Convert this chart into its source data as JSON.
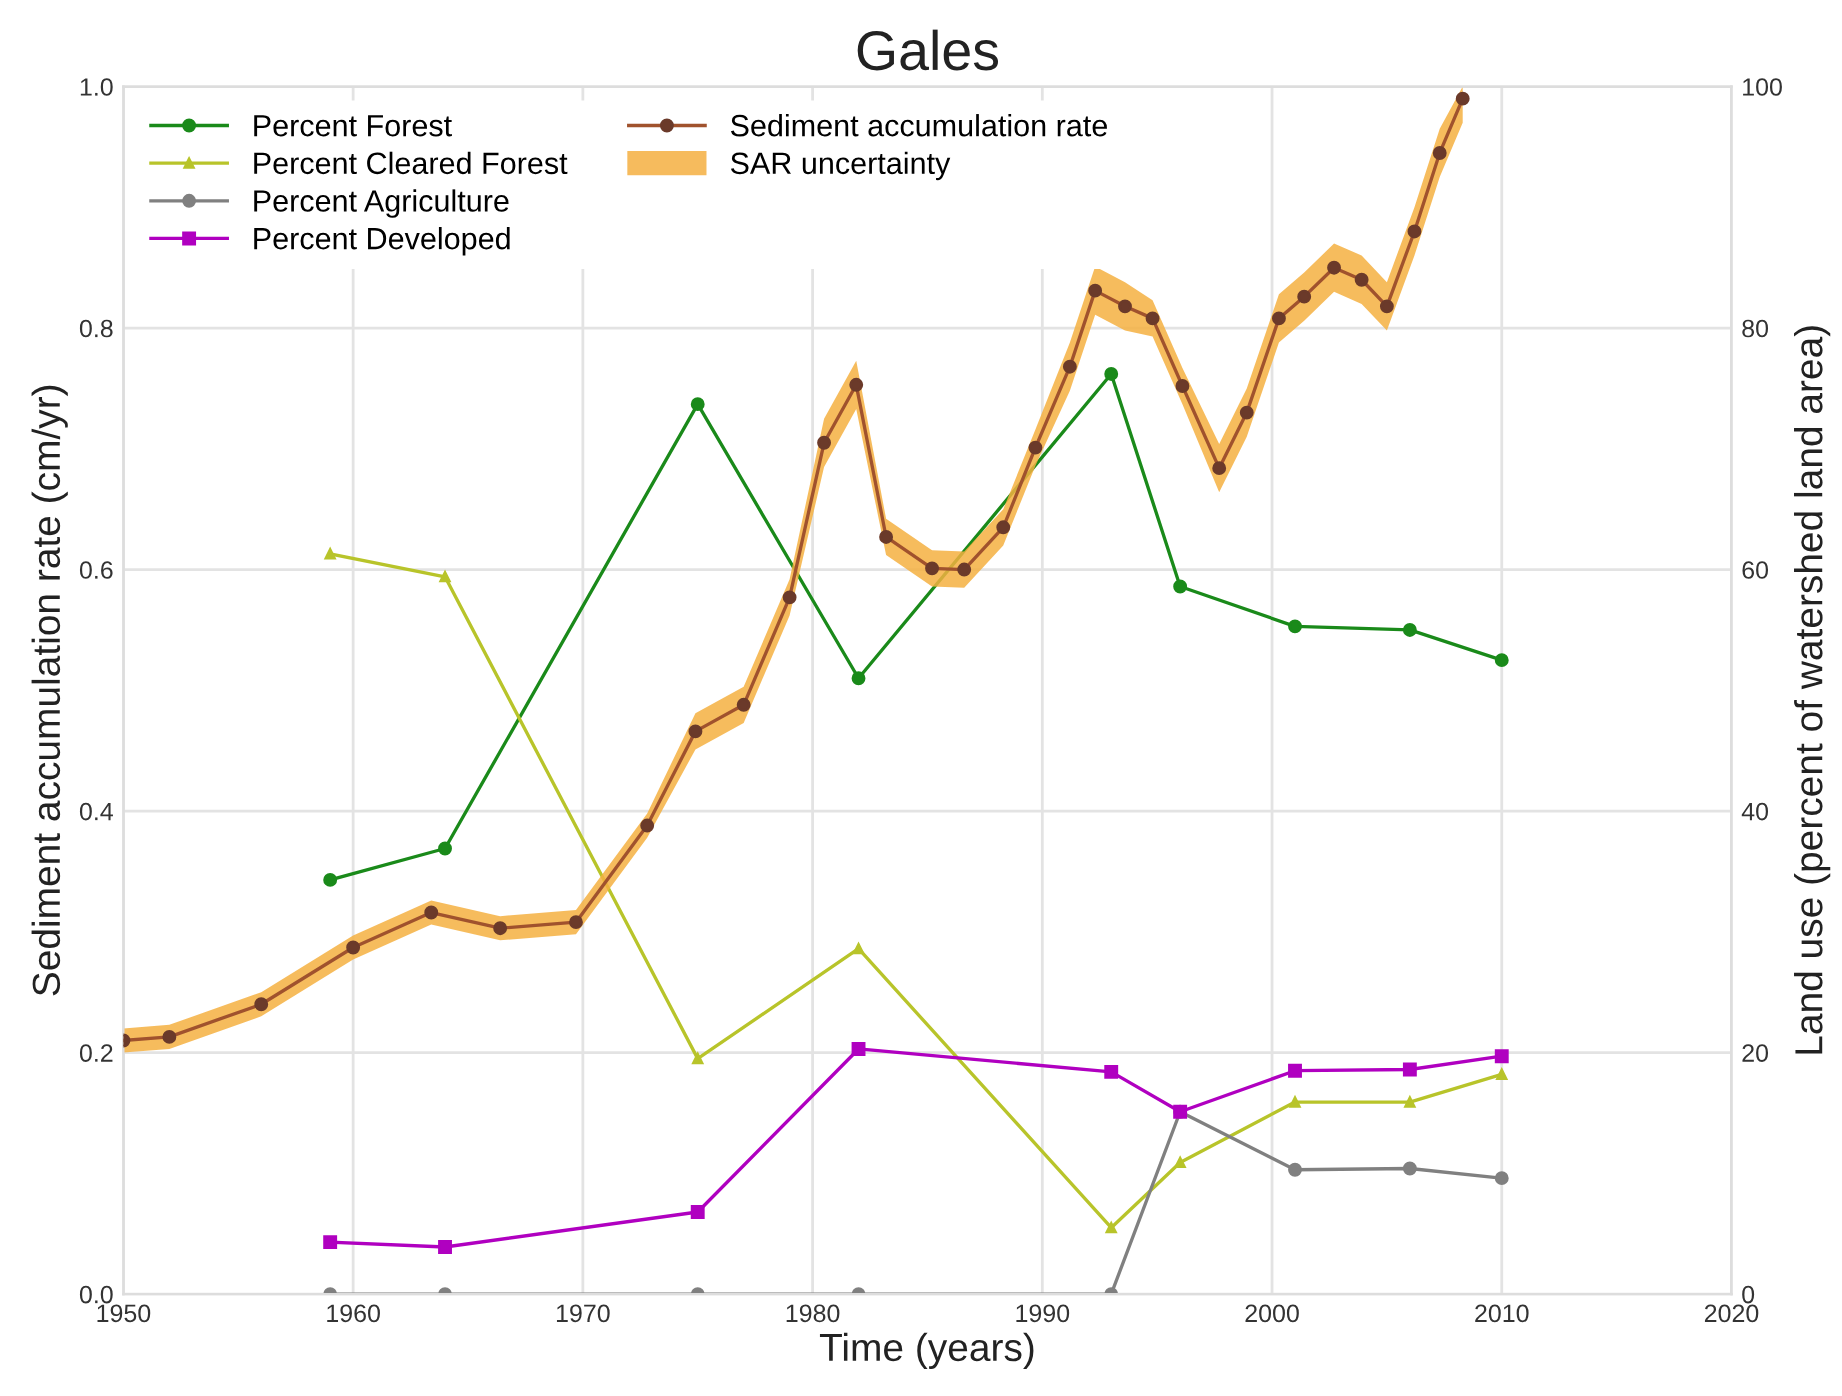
{
  "chart_data": {
    "type": "line",
    "title": "Gales",
    "xlabel": "Time (years)",
    "ylabel": "Sediment accumulation rate (cm/yr)",
    "y2label": "Land use (percent of watershed land area)",
    "xlim": [
      1950,
      2020
    ],
    "xticks": [
      1950,
      1960,
      1970,
      1980,
      1990,
      2000,
      2010,
      2020
    ],
    "ylim": [
      0,
      1.0
    ],
    "yticks": [
      {
        "value": 0,
        "label": "0.0"
      },
      0.2,
      0.4,
      0.6,
      0.8,
      {
        "value": 1,
        "label": "1.0"
      }
    ],
    "y2lim": [
      0,
      100
    ],
    "y2ticks": [
      0,
      20,
      40,
      60,
      80,
      100
    ],
    "grid": true,
    "legend": "top left",
    "line_style": "solid",
    "series": [
      {
        "name": "Percent Forest",
        "color": "#1a8a1a",
        "axis": "y2",
        "marker": "circle",
        "x": [
          1959,
          1964,
          1975,
          1982,
          1993,
          1996,
          2001,
          2006,
          2010
        ],
        "values": [
          34.3,
          36.9,
          73.7,
          51,
          76.2,
          58.6,
          55.3,
          55.0,
          52.5
        ]
      },
      {
        "name": "Percent Cleared Forest",
        "color": "#b8c42a",
        "axis": "y2",
        "marker": "triangle",
        "x": [
          1959,
          1964,
          1975,
          1982,
          1993,
          1996,
          2001,
          2006,
          2010
        ],
        "values": [
          61.3,
          59.4,
          19.5,
          28.6,
          5.5,
          10.9,
          15.9,
          15.9,
          18.2
        ]
      },
      {
        "name": "Percent Agriculture",
        "color": "#808080",
        "axis": "y2",
        "marker": "circle",
        "x": [
          1959,
          1964,
          1975,
          1982,
          1993,
          1996,
          2001,
          2006,
          2010
        ],
        "values": [
          0,
          0,
          0,
          0,
          0,
          15.1,
          10.3,
          10.4,
          9.6
        ]
      },
      {
        "name": "Percent Developed",
        "color": "#b000c0",
        "axis": "y2",
        "marker": "square",
        "x": [
          1959,
          1964,
          1975,
          1982,
          1993,
          1996,
          2001,
          2006,
          2010
        ],
        "values": [
          4.3,
          3.9,
          6.8,
          20.3,
          18.4,
          15.1,
          18.5,
          18.6,
          19.7
        ]
      },
      {
        "name": "Sediment accumulation rate",
        "color": "#a0522d",
        "marker": "circle",
        "x": [
          1950,
          1952,
          1956,
          1960,
          1963.4,
          1966.4,
          1969.7,
          1972.8,
          1974.9,
          1977,
          1979,
          1980.5,
          1981.9,
          1983.2,
          1985.2,
          1986.6,
          1988.3,
          1989.7,
          1991.2,
          1992.3,
          1993.6,
          1994.8,
          1996.1,
          1997.7,
          1998.9,
          2000.3,
          2001.4,
          2002.7,
          2003.9,
          2005,
          2006.2,
          2007.3,
          2008.3
        ],
        "values": [
          0.21,
          0.213,
          0.24,
          0.287,
          0.316,
          0.303,
          0.308,
          0.388,
          0.466,
          0.488,
          0.577,
          0.705,
          0.753,
          0.627,
          0.601,
          0.6,
          0.635,
          0.701,
          0.768,
          0.831,
          0.818,
          0.808,
          0.752,
          0.684,
          0.73,
          0.808,
          0.826,
          0.85,
          0.84,
          0.818,
          0.88,
          0.945,
          0.99
        ],
        "lower": [
          0.2,
          0.203,
          0.23,
          0.277,
          0.306,
          0.293,
          0.298,
          0.378,
          0.451,
          0.473,
          0.562,
          0.685,
          0.733,
          0.612,
          0.586,
          0.585,
          0.62,
          0.686,
          0.748,
          0.811,
          0.798,
          0.793,
          0.737,
          0.664,
          0.71,
          0.788,
          0.806,
          0.83,
          0.82,
          0.798,
          0.86,
          0.925,
          0.97
        ],
        "upper": [
          0.22,
          0.223,
          0.25,
          0.297,
          0.326,
          0.313,
          0.318,
          0.398,
          0.481,
          0.503,
          0.592,
          0.725,
          0.773,
          0.642,
          0.616,
          0.615,
          0.65,
          0.716,
          0.788,
          0.851,
          0.838,
          0.823,
          0.767,
          0.704,
          0.75,
          0.828,
          0.846,
          0.87,
          0.86,
          0.838,
          0.9,
          0.965,
          1.0
        ]
      },
      {
        "name": "SAR uncertainty",
        "type": "area",
        "color": "#f5b041"
      }
    ]
  }
}
